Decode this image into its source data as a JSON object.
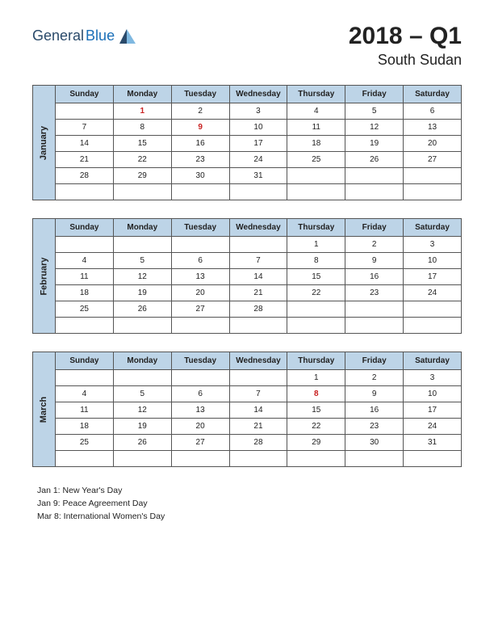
{
  "logo": {
    "general": "General",
    "blue": "Blue"
  },
  "title": {
    "main": "2018 – Q1",
    "sub": "South Sudan"
  },
  "colors": {
    "header_bg": "#bdd4e7",
    "border": "#555555",
    "holiday_text": "#c82020",
    "blue_text": "#1a6fb8"
  },
  "day_headers": [
    "Sunday",
    "Monday",
    "Tuesday",
    "Wednesday",
    "Thursday",
    "Friday",
    "Saturday"
  ],
  "months": [
    {
      "name": "January",
      "rows": [
        [
          "",
          {
            "v": "1",
            "c": "holiday"
          },
          "2",
          "3",
          "4",
          "5",
          "6"
        ],
        [
          "7",
          "8",
          {
            "v": "9",
            "c": "holiday"
          },
          "10",
          "11",
          "12",
          "13"
        ],
        [
          "14",
          "15",
          "16",
          "17",
          "18",
          "19",
          "20"
        ],
        [
          "21",
          "22",
          "23",
          "24",
          "25",
          "26",
          "27"
        ],
        [
          "28",
          "29",
          "30",
          "31",
          "",
          "",
          ""
        ],
        [
          "",
          "",
          "",
          "",
          "",
          "",
          ""
        ]
      ]
    },
    {
      "name": "February",
      "rows": [
        [
          "",
          "",
          "",
          "",
          "1",
          "2",
          "3"
        ],
        [
          "4",
          "5",
          "6",
          "7",
          "8",
          "9",
          "10"
        ],
        [
          "11",
          "12",
          "13",
          "14",
          "15",
          "16",
          "17"
        ],
        [
          "18",
          "19",
          "20",
          "21",
          "22",
          "23",
          "24"
        ],
        [
          "25",
          "26",
          "27",
          "28",
          "",
          "",
          ""
        ],
        [
          "",
          "",
          "",
          "",
          "",
          "",
          ""
        ]
      ]
    },
    {
      "name": "March",
      "rows": [
        [
          "",
          "",
          "",
          "",
          "1",
          "2",
          "3"
        ],
        [
          "4",
          "5",
          "6",
          "7",
          {
            "v": "8",
            "c": "holiday"
          },
          "9",
          "10"
        ],
        [
          "11",
          "12",
          "13",
          "14",
          "15",
          "16",
          "17"
        ],
        [
          "18",
          "19",
          "20",
          "21",
          "22",
          "23",
          "24"
        ],
        [
          "25",
          "26",
          "27",
          "28",
          "29",
          "30",
          "31"
        ],
        [
          "",
          "",
          "",
          "",
          "",
          "",
          ""
        ]
      ]
    }
  ],
  "holidays": [
    "Jan 1: New Year's Day",
    "Jan 9: Peace Agreement Day",
    "Mar 8: International Women's Day"
  ]
}
